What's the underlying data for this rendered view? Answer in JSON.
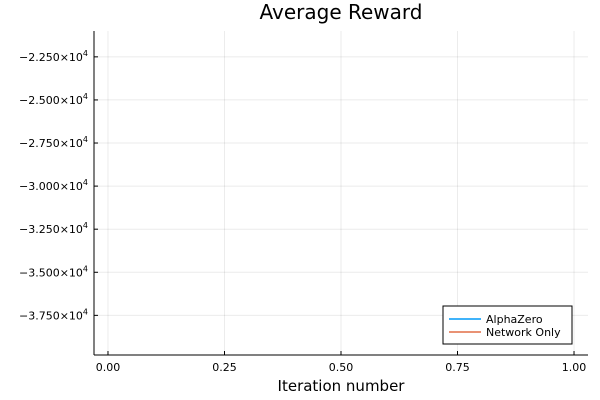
{
  "chart_data": {
    "type": "line",
    "title": "Average Reward",
    "xlabel": "Iteration number",
    "ylabel": "",
    "xlim": [
      -0.03,
      1.03
    ],
    "ylim": [
      -39800,
      -21000
    ],
    "x_ticks": [
      {
        "value": 0.0,
        "label": "0.00"
      },
      {
        "value": 0.25,
        "label": "0.25"
      },
      {
        "value": 0.5,
        "label": "0.50"
      },
      {
        "value": 0.75,
        "label": "0.75"
      },
      {
        "value": 1.0,
        "label": "1.00"
      }
    ],
    "y_ticks": [
      {
        "value": -22500,
        "mantissa": "−2.250×10",
        "exp": "4"
      },
      {
        "value": -25000,
        "mantissa": "−2.500×10",
        "exp": "4"
      },
      {
        "value": -27500,
        "mantissa": "−2.750×10",
        "exp": "4"
      },
      {
        "value": -30000,
        "mantissa": "−3.000×10",
        "exp": "4"
      },
      {
        "value": -32500,
        "mantissa": "−3.250×10",
        "exp": "4"
      },
      {
        "value": -35000,
        "mantissa": "−3.500×10",
        "exp": "4"
      },
      {
        "value": -37500,
        "mantissa": "−3.750×10",
        "exp": "4"
      }
    ],
    "grid": true,
    "legend_position": "bottom-right",
    "series": [
      {
        "name": "AlphaZero",
        "color": "#009af9",
        "x": [],
        "y": []
      },
      {
        "name": "Network Only",
        "color": "#e26f46",
        "x": [],
        "y": []
      }
    ]
  }
}
